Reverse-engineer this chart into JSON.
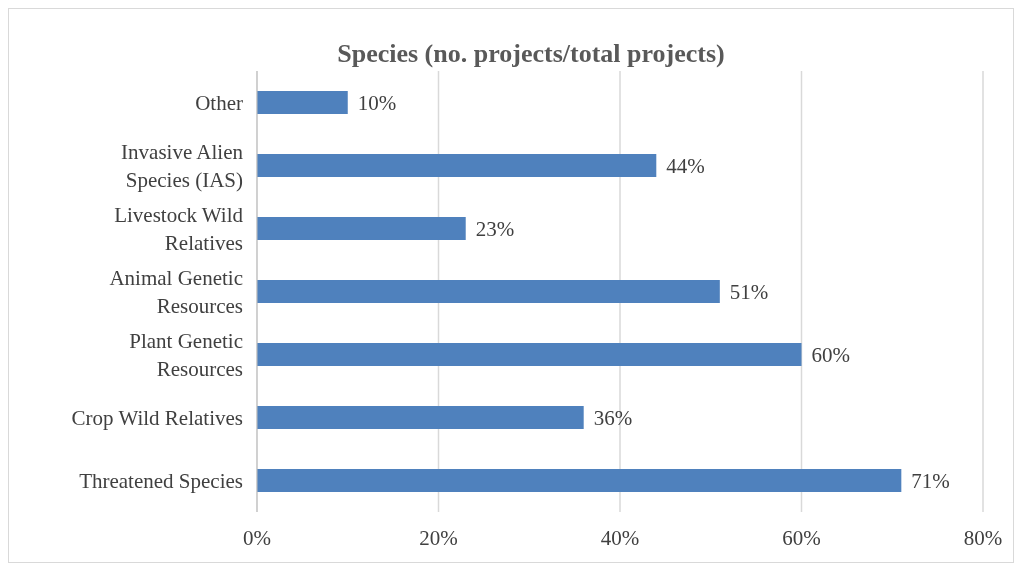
{
  "chart_data": {
    "type": "bar",
    "orientation": "horizontal",
    "title": "Species (no. projects/total projects)",
    "categories": [
      "Other",
      "Invasive Alien Species (IAS)",
      "Livestock Wild Relatives",
      "Animal Genetic Resources",
      "Plant Genetic Resources",
      "Crop Wild Relatives",
      "Threatened Species"
    ],
    "values": [
      10,
      44,
      23,
      51,
      60,
      36,
      71
    ],
    "value_labels": [
      "10%",
      "44%",
      "23%",
      "51%",
      "60%",
      "36%",
      "71%"
    ],
    "color": "#4f81bd",
    "xlim": [
      0,
      80
    ],
    "xticks": [
      {
        "value": 0,
        "label": "0%"
      },
      {
        "value": 20,
        "label": "20%"
      },
      {
        "value": 40,
        "label": "40%"
      },
      {
        "value": 60,
        "label": "60%"
      },
      {
        "value": 80,
        "label": "80%"
      }
    ],
    "grid": "x",
    "legend": false
  }
}
